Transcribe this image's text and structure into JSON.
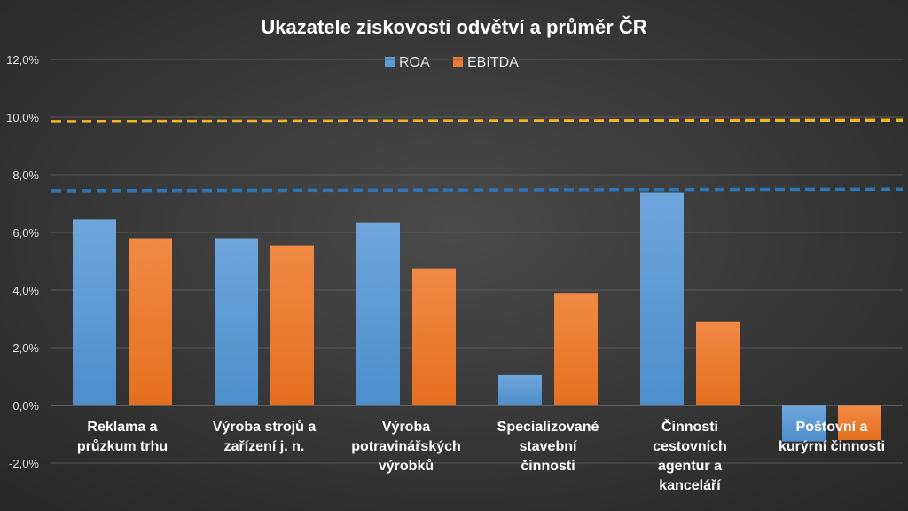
{
  "chart_data": {
    "type": "bar",
    "title": "Ukazatele ziskovosti odvětví a průměr ČR",
    "categories": [
      "Reklama a průzkum trhu",
      "Výroba strojů a zařízení j. n.",
      "Výroba potravinářských výrobků",
      "Specializované stavební činnosti",
      "Činnosti cestovních agentur a kanceláří",
      "Poštovní a kurýrní činnosti"
    ],
    "category_lines": [
      [
        "Reklama a",
        "průzkum trhu"
      ],
      [
        "Výroba strojů a",
        "zařízení j. n."
      ],
      [
        "Výroba",
        "potravinářských",
        "výrobků"
      ],
      [
        "Specializované",
        "stavební",
        "činnosti"
      ],
      [
        "Činnosti",
        "cestovních",
        "agentur a",
        "kanceláří"
      ],
      [
        "Poštovní a",
        "kurýrní činnosti"
      ]
    ],
    "series": [
      {
        "name": "ROA",
        "color": "#5b9bd5",
        "values": [
          6.45,
          5.8,
          6.35,
          1.05,
          7.4,
          -1.25
        ]
      },
      {
        "name": "EBITDA",
        "color": "#ed7d31",
        "values": [
          5.8,
          5.55,
          4.75,
          3.9,
          2.9,
          -1.2
        ]
      }
    ],
    "reference_lines": [
      {
        "series": "ROA",
        "color": "#2e75b6",
        "value_start": 7.45,
        "value_end": 7.5
      },
      {
        "series": "EBITDA",
        "color": "#f0b429",
        "value_start": 9.85,
        "value_end": 9.9
      }
    ],
    "ylim": [
      -2,
      12
    ],
    "yticks": [
      -2,
      0,
      2,
      4,
      6,
      8,
      10,
      12
    ],
    "ytick_labels": [
      "-2,0%",
      "0,0%",
      "2,0%",
      "4,0%",
      "6,0%",
      "8,0%",
      "10,0%",
      "12,0%"
    ],
    "xlabel": "",
    "ylabel": "",
    "grid": true,
    "legend": "top-center"
  }
}
